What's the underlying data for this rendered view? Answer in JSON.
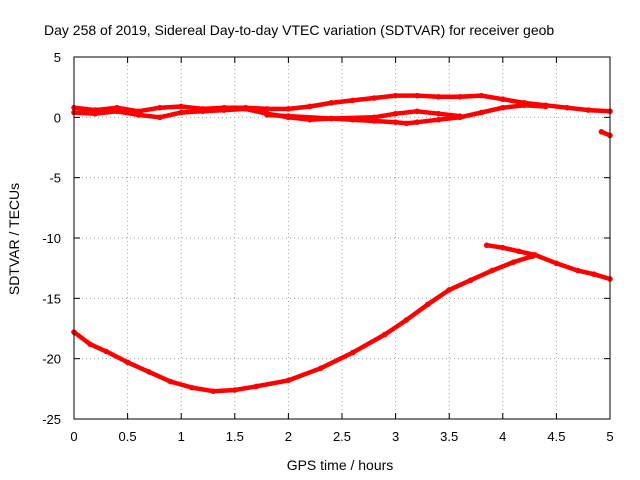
{
  "chart_data": {
    "type": "line",
    "title": "Day 258 of 2019, Sidereal Day-to-day VTEC variation (SDTVAR) for receiver geob",
    "xlabel": "GPS time / hours",
    "ylabel": "SDTVAR / TECUs",
    "xlim": [
      0,
      5
    ],
    "ylim": [
      -25,
      5
    ],
    "xticks": [
      0,
      0.5,
      1,
      1.5,
      2,
      2.5,
      3,
      3.5,
      4,
      4.5,
      5
    ],
    "xtick_labels": [
      "0",
      "0.5",
      "1",
      "1.5",
      "2",
      "2.5",
      "3",
      "3.5",
      "4",
      "4.5",
      "5"
    ],
    "yticks": [
      -25,
      -20,
      -15,
      -10,
      -5,
      0,
      5
    ],
    "ytick_labels": [
      "-25",
      "-20",
      "-15",
      "-10",
      "-5",
      "0",
      "5"
    ],
    "grid": true,
    "series_color": "#ff0000",
    "series": [
      {
        "x": [
          0,
          0.15,
          0.3,
          0.5,
          0.7,
          0.9,
          1.1,
          1.3,
          1.5,
          1.7,
          2.0,
          2.3,
          2.6,
          2.9,
          3.1,
          3.3,
          3.5,
          3.7,
          3.9,
          4.1,
          4.28
        ],
        "y": [
          -17.8,
          -18.8,
          -19.4,
          -20.3,
          -21.1,
          -21.9,
          -22.4,
          -22.7,
          -22.6,
          -22.3,
          -21.8,
          -20.8,
          -19.5,
          -18.0,
          -16.8,
          -15.5,
          -14.3,
          -13.5,
          -12.7,
          -12.0,
          -11.5
        ]
      },
      {
        "x": [
          3.85,
          4.0,
          4.15,
          4.3,
          4.5,
          4.7,
          4.85,
          5.0
        ],
        "y": [
          -10.6,
          -10.8,
          -11.1,
          -11.4,
          -12.1,
          -12.7,
          -13.0,
          -13.4
        ]
      },
      {
        "x": [
          0,
          0.2,
          0.4,
          0.6,
          0.8,
          1.0,
          1.2,
          1.4,
          1.6,
          1.8,
          2.0,
          2.2,
          2.4,
          2.6,
          2.8,
          3.0,
          3.2,
          3.4,
          3.6,
          3.8,
          4.0,
          4.2,
          4.4,
          4.6,
          4.8,
          5.0
        ],
        "y": [
          0.8,
          0.6,
          0.8,
          0.5,
          0.8,
          0.9,
          0.7,
          0.8,
          0.8,
          0.7,
          0.7,
          0.9,
          1.2,
          1.4,
          1.6,
          1.8,
          1.8,
          1.7,
          1.7,
          1.8,
          1.5,
          1.2,
          1.0,
          0.8,
          0.6,
          0.5
        ]
      },
      {
        "x": [
          0,
          0.2,
          0.4,
          0.6,
          0.8,
          1.0,
          1.2,
          1.4,
          1.6,
          1.8,
          2.0,
          2.2,
          2.4,
          2.6,
          2.8,
          3.0,
          3.1,
          3.2,
          3.4,
          3.6,
          3.8,
          4.0,
          4.2,
          4.4
        ],
        "y": [
          0.4,
          0.3,
          0.5,
          0.2,
          0.0,
          0.4,
          0.5,
          0.6,
          0.7,
          0.3,
          0.0,
          -0.2,
          -0.1,
          -0.2,
          -0.3,
          -0.4,
          -0.5,
          -0.4,
          -0.2,
          0.0,
          0.4,
          0.8,
          1.0,
          0.9
        ]
      },
      {
        "x": [
          1.8,
          2.0,
          2.4,
          2.8,
          3.0,
          3.2,
          3.4,
          3.6
        ],
        "y": [
          0.2,
          0.1,
          -0.1,
          0.0,
          0.3,
          0.5,
          0.3,
          0.1
        ]
      },
      {
        "x": [
          4.92,
          5.0
        ],
        "y": [
          -1.2,
          -1.5
        ]
      }
    ]
  }
}
